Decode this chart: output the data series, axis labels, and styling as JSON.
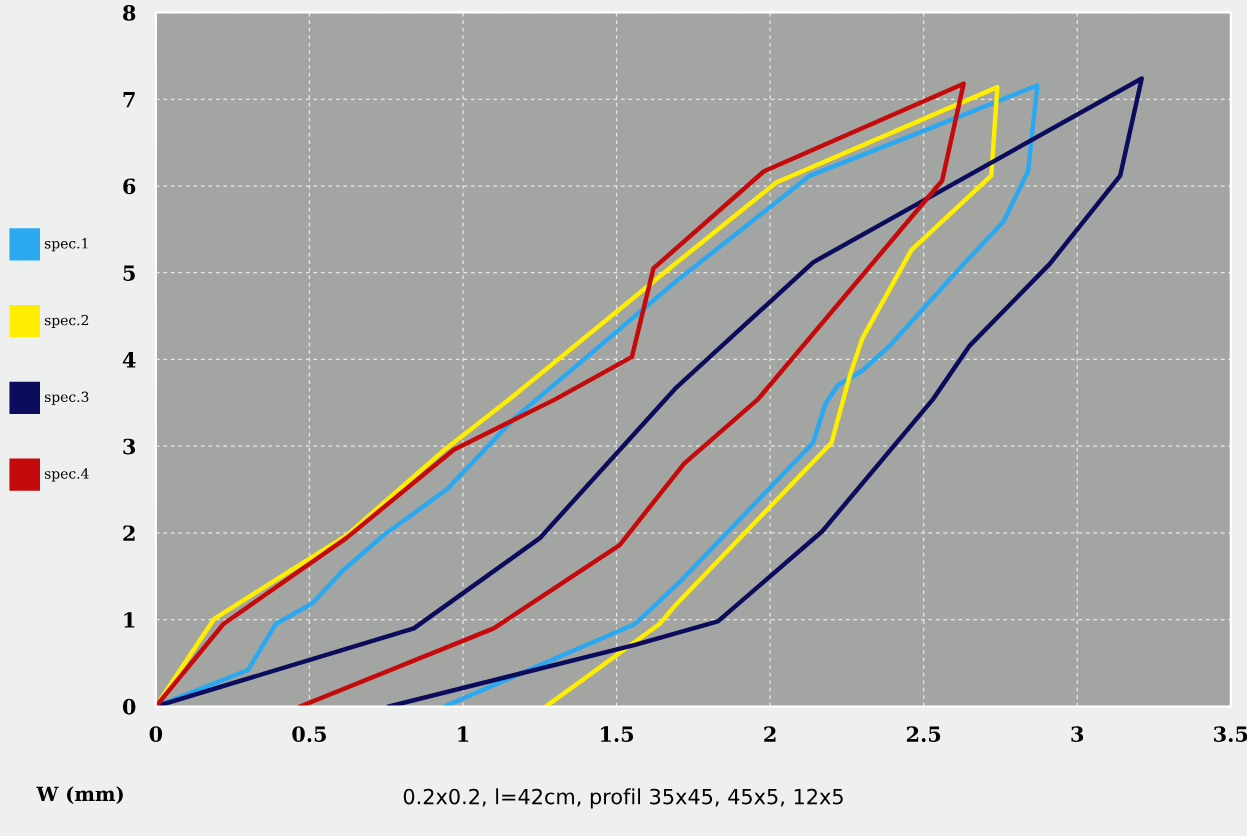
{
  "chart_data": {
    "type": "line",
    "xlabel": "W (mm)",
    "annotations": [
      "0.2x0.2, l=42cm, profil 35x45, 45x5, 12x5"
    ],
    "series": [
      {
        "name": "spec.1",
        "color": "#2aa8f0",
        "x": [
          0,
          0.3,
          0.39,
          0.51,
          0.61,
          0.74,
          0.95,
          1.17,
          1.69,
          2.13,
          2.51,
          2.87,
          2.84,
          2.76,
          2.63,
          2.39,
          2.3,
          2.22,
          2.18,
          2.14,
          1.71,
          1.56,
          0.94
        ],
        "values": [
          0,
          0.42,
          0.95,
          1.19,
          1.57,
          1.97,
          2.51,
          3.33,
          4.89,
          6.12,
          6.65,
          7.16,
          6.17,
          5.59,
          5.1,
          4.16,
          3.87,
          3.7,
          3.49,
          3.04,
          1.45,
          0.95,
          0
        ]
      },
      {
        "name": "spec.2",
        "color": "#ffee00",
        "x": [
          0,
          0.19,
          0.62,
          0.94,
          1.15,
          1.69,
          2.02,
          2.74,
          2.72,
          2.46,
          2.3,
          2.26,
          2.2,
          1.69,
          1.64,
          1.27
        ],
        "values": [
          0,
          1.01,
          1.97,
          2.96,
          3.54,
          5.1,
          6.04,
          7.14,
          6.12,
          5.26,
          4.24,
          3.82,
          3.04,
          1.16,
          0.95,
          0
        ]
      },
      {
        "name": "spec.3",
        "color": "#0c0c5c",
        "x": [
          0,
          0.84,
          1.25,
          1.69,
          2.14,
          3.21,
          3.14,
          2.91,
          2.65,
          2.53,
          2.17,
          1.83,
          1.56,
          0.76
        ],
        "values": [
          0,
          0.9,
          1.94,
          3.66,
          5.12,
          7.24,
          6.12,
          5.1,
          4.16,
          3.54,
          2.02,
          0.98,
          0.71,
          0
        ]
      },
      {
        "name": "spec.4",
        "color": "#c40a0a",
        "x": [
          0,
          0.22,
          0.62,
          0.97,
          1.3,
          1.55,
          1.62,
          1.98,
          2.63,
          2.56,
          1.96,
          1.72,
          1.51,
          1.1,
          0.47
        ],
        "values": [
          0,
          0.95,
          1.94,
          2.96,
          3.54,
          4.03,
          5.05,
          6.17,
          7.18,
          6.06,
          3.54,
          2.8,
          1.86,
          0.9,
          0
        ]
      }
    ],
    "xlim": [
      0,
      3.5
    ],
    "xticks": [
      0,
      0.5,
      1,
      1.5,
      2,
      2.5,
      3,
      3.5
    ],
    "ylim": [
      0,
      8
    ],
    "yticks": [
      0,
      1,
      2,
      3,
      4,
      5,
      6,
      7,
      8
    ],
    "grid": true,
    "legend": "left",
    "marker": "none",
    "line_style": "solid"
  }
}
